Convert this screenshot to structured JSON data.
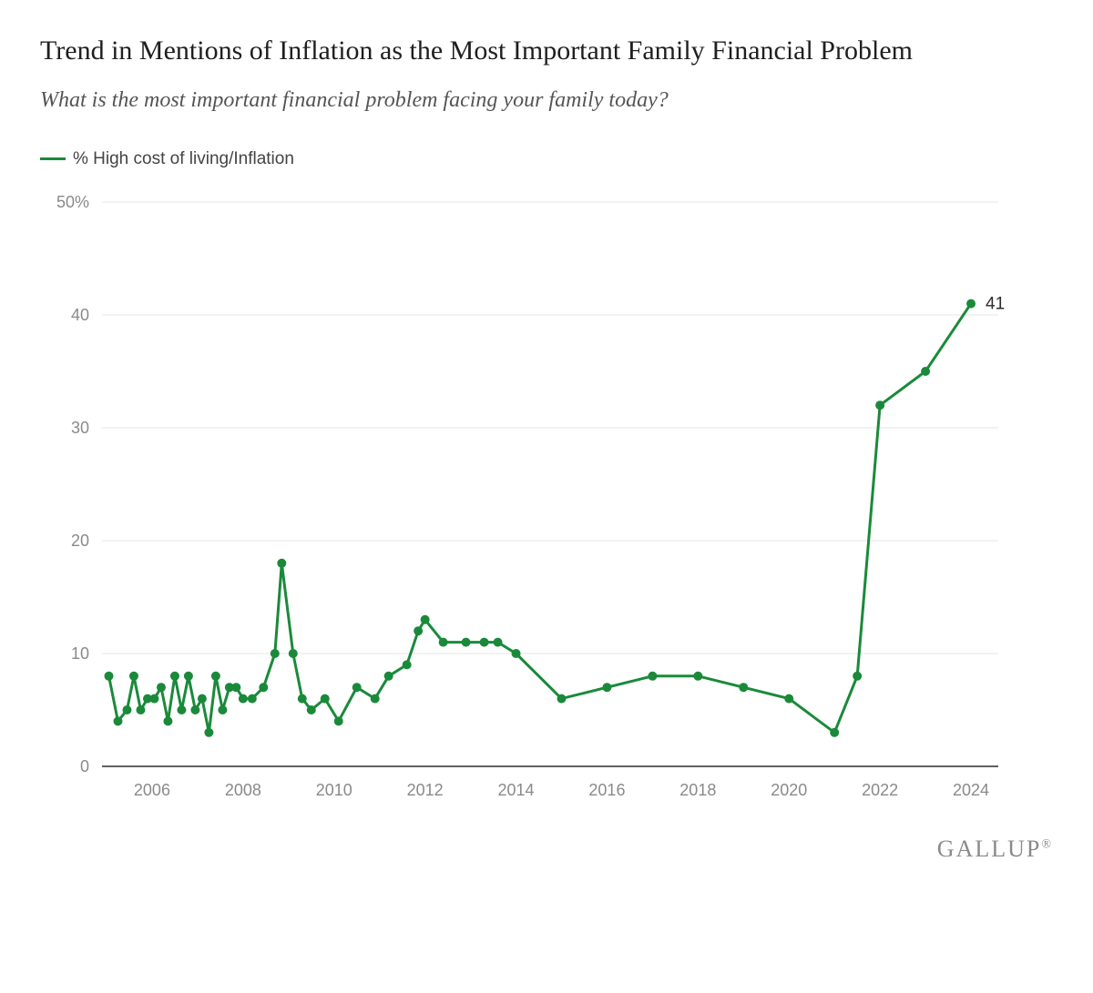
{
  "title": "Trend in Mentions of Inflation as the Most Important Family Financial Problem",
  "subtitle": "What is the most important financial problem facing your family today?",
  "legend_label": "% High cost of living/Inflation",
  "attribution": "GALLUP",
  "chart": {
    "type": "line",
    "background_color": "#ffffff",
    "grid_color": "#e6e6e6",
    "axis_color": "#000000",
    "tick_label_color": "#8a8a8a",
    "tick_fontsize": 18,
    "tick_font_family": "Arial, Helvetica, sans-serif",
    "title_fontsize": 30,
    "subtitle_fontsize": 24,
    "legend_fontsize": 19,
    "series_color": "#1a8a3a",
    "line_width": 3,
    "marker_style": "circle",
    "marker_radius": 5,
    "ylim": [
      0,
      50
    ],
    "ytick_step": 10,
    "ytick_labels": [
      "0",
      "10",
      "20",
      "30",
      "40",
      "50%"
    ],
    "xlim": [
      2004.9,
      2024.6
    ],
    "xtick_step": 2,
    "xtick_start": 2006,
    "xtick_end": 2024,
    "annotation_value": "41",
    "annotation_color": "#2c2c2c",
    "annotation_fontsize": 19,
    "series_name": "% High cost of living/Inflation",
    "data": [
      {
        "x": 2005.05,
        "y": 8
      },
      {
        "x": 2005.25,
        "y": 4
      },
      {
        "x": 2005.45,
        "y": 5
      },
      {
        "x": 2005.6,
        "y": 8
      },
      {
        "x": 2005.75,
        "y": 5
      },
      {
        "x": 2005.9,
        "y": 6
      },
      {
        "x": 2006.05,
        "y": 6
      },
      {
        "x": 2006.2,
        "y": 7
      },
      {
        "x": 2006.35,
        "y": 4
      },
      {
        "x": 2006.5,
        "y": 8
      },
      {
        "x": 2006.65,
        "y": 5
      },
      {
        "x": 2006.8,
        "y": 8
      },
      {
        "x": 2006.95,
        "y": 5
      },
      {
        "x": 2007.1,
        "y": 6
      },
      {
        "x": 2007.25,
        "y": 3
      },
      {
        "x": 2007.4,
        "y": 8
      },
      {
        "x": 2007.55,
        "y": 5
      },
      {
        "x": 2007.7,
        "y": 7
      },
      {
        "x": 2007.85,
        "y": 7
      },
      {
        "x": 2008.0,
        "y": 6
      },
      {
        "x": 2008.2,
        "y": 6
      },
      {
        "x": 2008.45,
        "y": 7
      },
      {
        "x": 2008.7,
        "y": 10
      },
      {
        "x": 2008.85,
        "y": 18
      },
      {
        "x": 2009.1,
        "y": 10
      },
      {
        "x": 2009.3,
        "y": 6
      },
      {
        "x": 2009.5,
        "y": 5
      },
      {
        "x": 2009.8,
        "y": 6
      },
      {
        "x": 2010.1,
        "y": 4
      },
      {
        "x": 2010.5,
        "y": 7
      },
      {
        "x": 2010.9,
        "y": 6
      },
      {
        "x": 2011.2,
        "y": 8
      },
      {
        "x": 2011.6,
        "y": 9
      },
      {
        "x": 2011.85,
        "y": 12
      },
      {
        "x": 2012.0,
        "y": 13
      },
      {
        "x": 2012.4,
        "y": 11
      },
      {
        "x": 2012.9,
        "y": 11
      },
      {
        "x": 2013.3,
        "y": 11
      },
      {
        "x": 2013.6,
        "y": 11
      },
      {
        "x": 2014.0,
        "y": 10
      },
      {
        "x": 2015.0,
        "y": 6
      },
      {
        "x": 2016.0,
        "y": 7
      },
      {
        "x": 2017.0,
        "y": 8
      },
      {
        "x": 2018.0,
        "y": 8
      },
      {
        "x": 2019.0,
        "y": 7
      },
      {
        "x": 2020.0,
        "y": 6
      },
      {
        "x": 2021.0,
        "y": 3
      },
      {
        "x": 2021.5,
        "y": 8
      },
      {
        "x": 2022.0,
        "y": 32
      },
      {
        "x": 2023.0,
        "y": 35
      },
      {
        "x": 2024.0,
        "y": 41
      }
    ]
  }
}
